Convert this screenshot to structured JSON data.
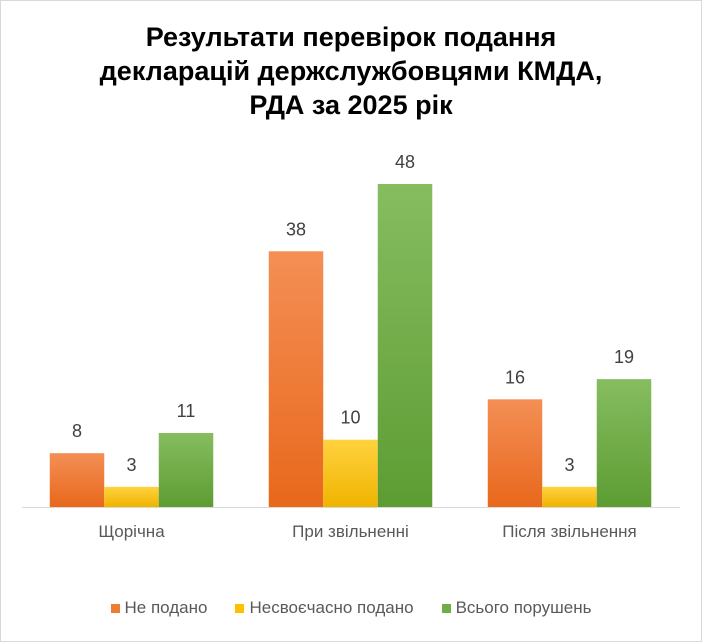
{
  "chart_data": {
    "type": "bar",
    "title_lines": [
      "Результати перевірок подання",
      "декларацій держслужбовцями КМДА,",
      "РДА за 2025 рік"
    ],
    "categories": [
      "Щорічна",
      "При звільненні",
      "Після звільнення"
    ],
    "series": [
      {
        "name": "Не подано",
        "values": [
          8,
          38,
          16
        ],
        "color": "#ed7d31"
      },
      {
        "name": "Несвоєчасно подано",
        "values": [
          3,
          10,
          3
        ],
        "color": "#ffc000"
      },
      {
        "name": "Всього порушень",
        "values": [
          11,
          48,
          19
        ],
        "color": "#70ad47"
      }
    ],
    "xlabel": "",
    "ylabel": "",
    "ylim": [
      0,
      48
    ],
    "grid": false,
    "legend_position": "bottom",
    "data_labels": true
  }
}
